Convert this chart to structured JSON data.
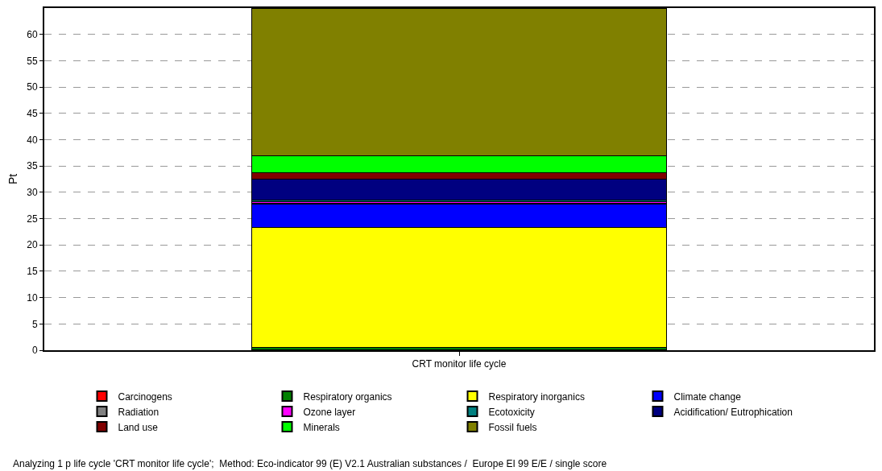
{
  "chart_data": {
    "type": "bar",
    "stacked": true,
    "ylabel": "Pt",
    "categories": [
      "CRT monitor life cycle"
    ],
    "series": [
      {
        "name": "Carcinogens",
        "color": "#ff0000",
        "values": [
          0.1
        ]
      },
      {
        "name": "Respiratory organics",
        "color": "#008000",
        "values": [
          0.4
        ]
      },
      {
        "name": "Respiratory inorganics",
        "color": "#ffff00",
        "values": [
          22.8
        ]
      },
      {
        "name": "Climate change",
        "color": "#0000ff",
        "values": [
          4.5
        ]
      },
      {
        "name": "Radiation",
        "color": "#808080",
        "values": [
          0.1
        ]
      },
      {
        "name": "Ozone layer",
        "color": "#ff00ff",
        "values": [
          0.3
        ]
      },
      {
        "name": "Ecotoxicity",
        "color": "#008080",
        "values": [
          0.4
        ]
      },
      {
        "name": "Acidification/ Eutrophication",
        "color": "#000080",
        "values": [
          3.9
        ]
      },
      {
        "name": "Land use",
        "color": "#800000",
        "values": [
          1.2
        ]
      },
      {
        "name": "Minerals",
        "color": "#00ff00",
        "values": [
          3.2
        ]
      },
      {
        "name": "Fossil fuels",
        "color": "#808000",
        "values": [
          28.1
        ]
      }
    ],
    "ylim": [
      0,
      65
    ],
    "yticks": [
      0,
      5,
      10,
      15,
      20,
      25,
      30,
      35,
      40,
      45,
      50,
      55,
      60
    ],
    "grid": "y",
    "legend": "bottom",
    "annotations": [
      "Analyzing 1 p life cycle 'CRT monitor life cycle';  Method: Eco-indicator 99 (E) V2.1 Australian substances /  Europe EI 99 E/E / single score"
    ]
  }
}
